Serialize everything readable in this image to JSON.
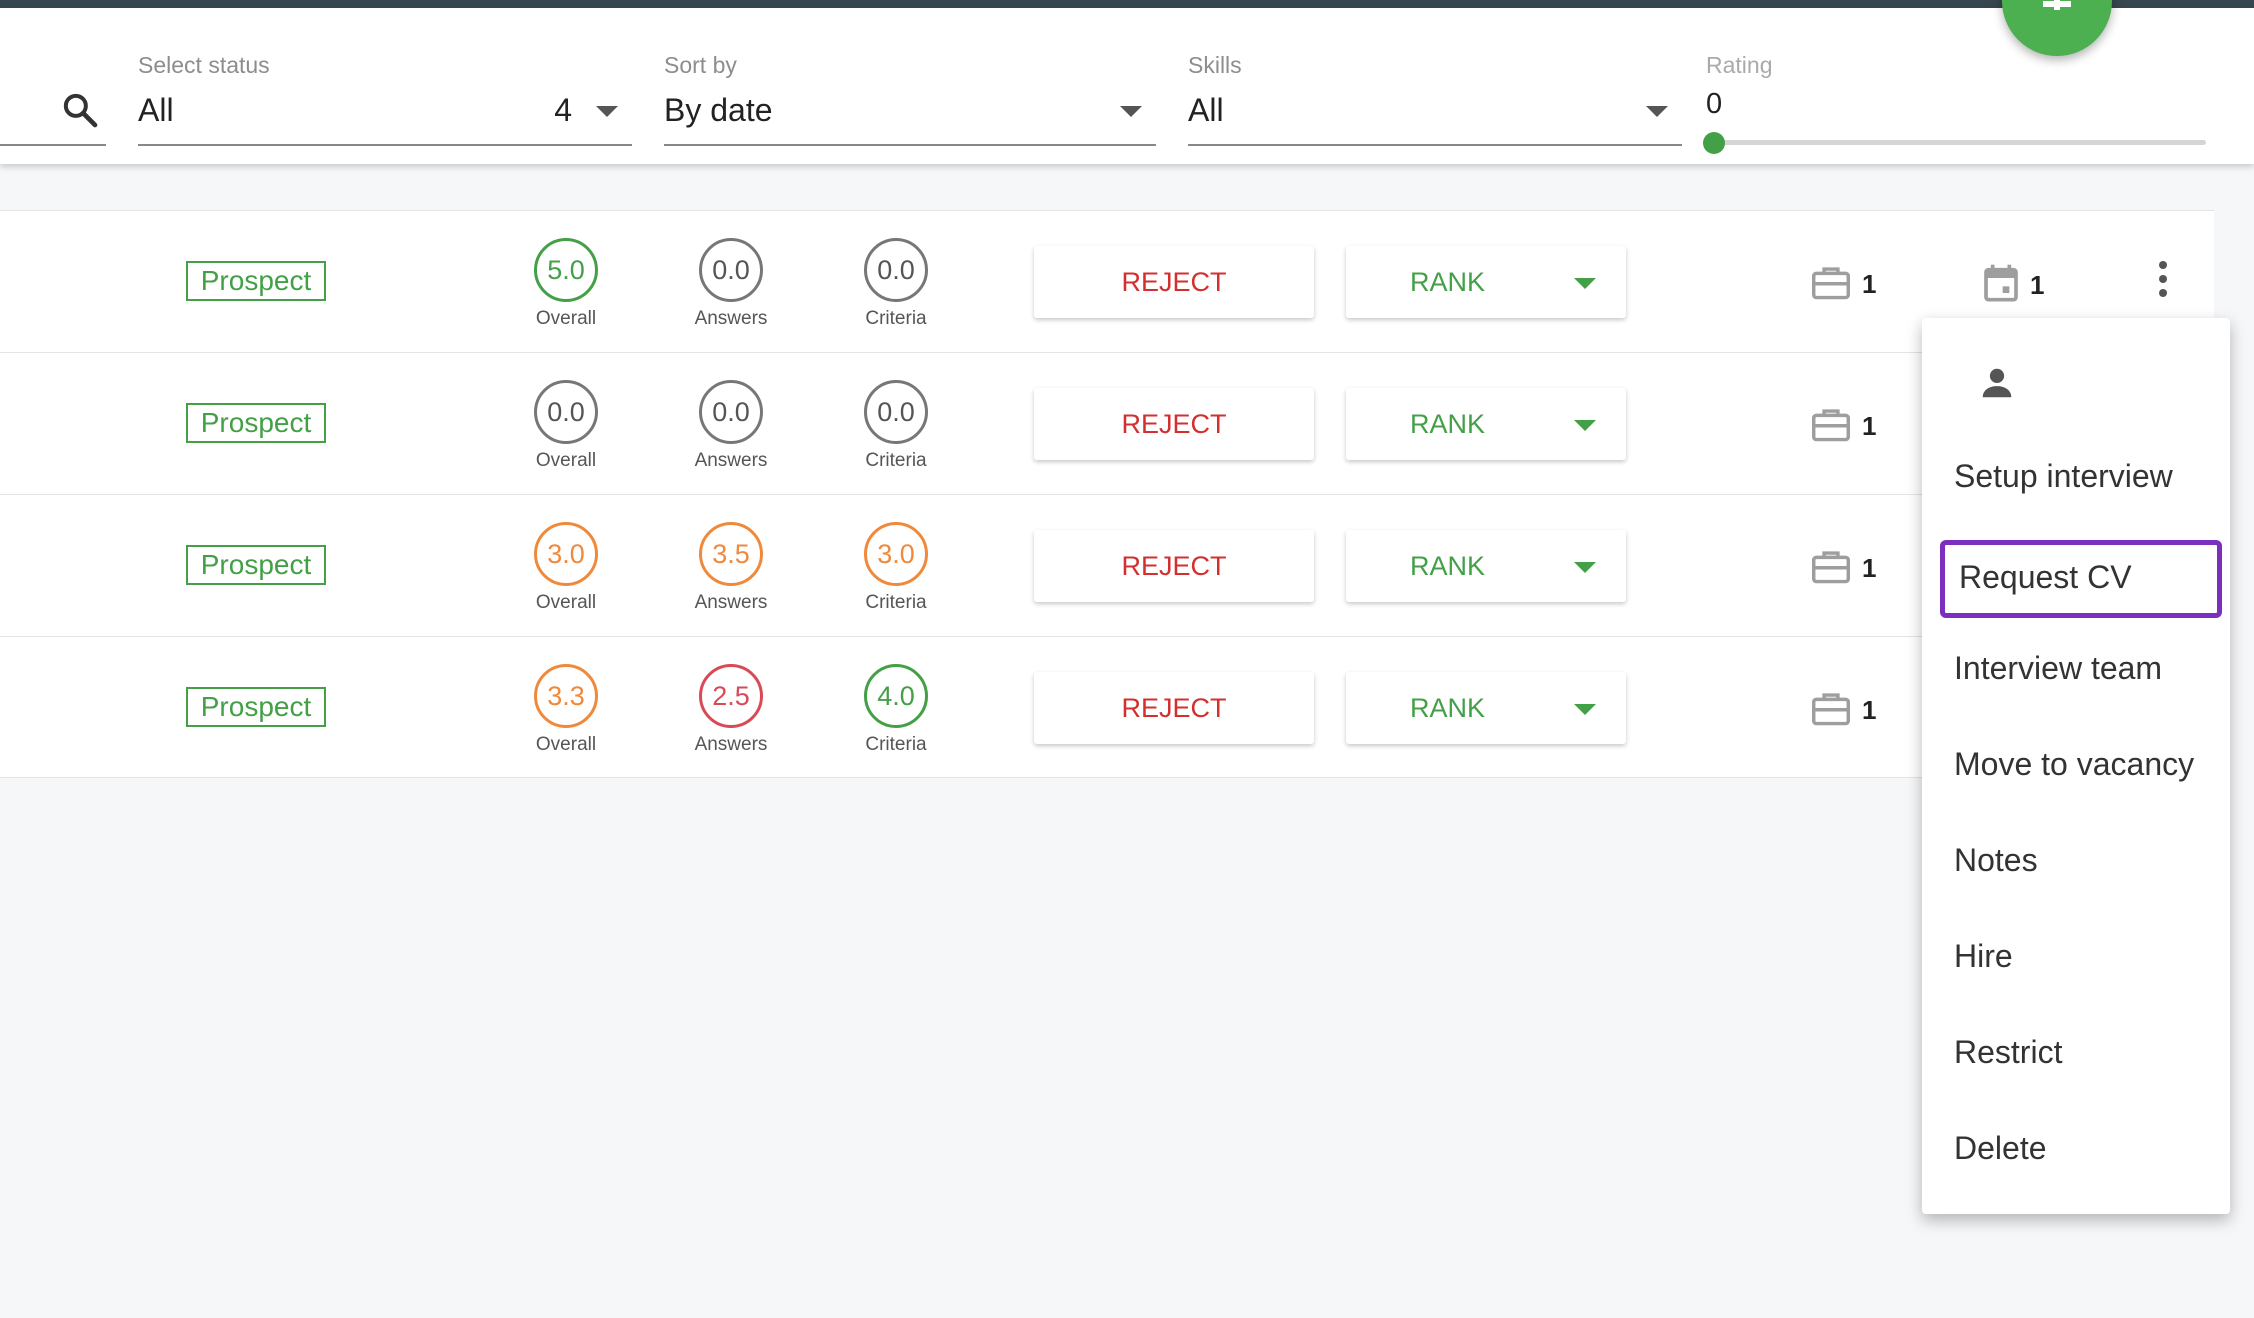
{
  "filters": {
    "status": {
      "label": "Select status",
      "value": "All",
      "count": "4"
    },
    "sort": {
      "label": "Sort by",
      "value": "By date"
    },
    "skills": {
      "label": "Skills",
      "value": "All"
    },
    "rating": {
      "label": "Rating",
      "value": "0",
      "level": 0
    }
  },
  "fab": {
    "icon": "plus-icon",
    "color": "#4caf50"
  },
  "score_captions": {
    "overall": "Overall",
    "answers": "Answers",
    "criteria": "Criteria"
  },
  "buttons": {
    "reject": "REJECT",
    "rank": "RANK"
  },
  "colors": {
    "accent": "#43a047",
    "reject": "#d32f2f",
    "score_grey": "#777777",
    "score_green": "#43a047",
    "score_orange": "#ef8a3c",
    "score_red": "#d84a56",
    "selection_outline": "#7b2fbf"
  },
  "rows": [
    {
      "status": "Prospect",
      "overall": "5.0",
      "answers": "0.0",
      "criteria": "0.0",
      "overall_color": "#43a047",
      "answers_color": "#777777",
      "criteria_color": "#777777",
      "brief_count": "1",
      "calendar_count": "1"
    },
    {
      "status": "Prospect",
      "overall": "0.0",
      "answers": "0.0",
      "criteria": "0.0",
      "overall_color": "#777777",
      "answers_color": "#777777",
      "criteria_color": "#777777",
      "brief_count": "1"
    },
    {
      "status": "Prospect",
      "overall": "3.0",
      "answers": "3.5",
      "criteria": "3.0",
      "overall_color": "#ef8a3c",
      "answers_color": "#ef8a3c",
      "criteria_color": "#ef8a3c",
      "brief_count": "1"
    },
    {
      "status": "Prospect",
      "overall": "3.3",
      "answers": "2.5",
      "criteria": "4.0",
      "overall_color": "#ef8a3c",
      "answers_color": "#d84a56",
      "criteria_color": "#43a047",
      "brief_count": "1"
    }
  ],
  "menu": {
    "avatar_icon": "person-icon",
    "items": [
      "Setup interview",
      "Request CV",
      "Interview team",
      "Move to vacancy",
      "Notes",
      "Hire",
      "Restrict",
      "Delete"
    ],
    "selected": "Request CV"
  }
}
